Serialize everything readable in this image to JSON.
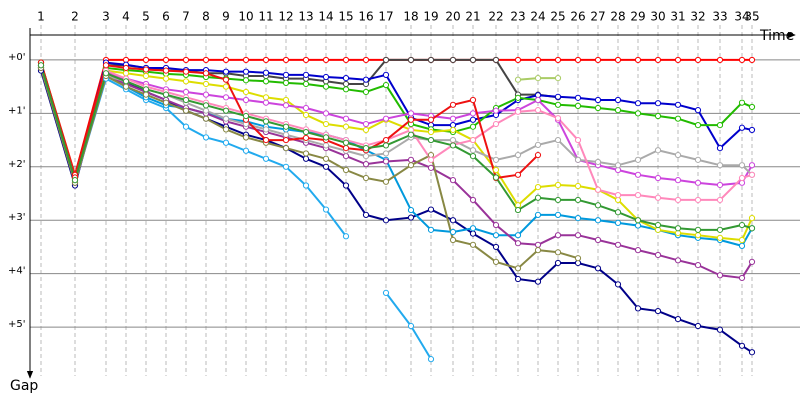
{
  "chart_data": {
    "type": "line",
    "x_label": "Time",
    "y_label": "Gap",
    "x": [
      0.8,
      2.5,
      4.05,
      5.05,
      6.05,
      7.05,
      8.05,
      9.05,
      10.05,
      11.05,
      12.05,
      13.05,
      14.05,
      15.05,
      16.05,
      17.05,
      18.05,
      19.3,
      20.3,
      21.4,
      22.4,
      23.55,
      24.65,
      25.65,
      26.65,
      27.65,
      28.65,
      29.65,
      30.65,
      31.65,
      32.65,
      33.65,
      34.75,
      35.85,
      36.35
    ],
    "xlim": [
      0.25,
      38.75
    ],
    "xticks": [
      {
        "value": 0.8,
        "label": "1"
      },
      {
        "value": 2.5,
        "label": "2"
      },
      {
        "value": 4.05,
        "label": "3"
      },
      {
        "value": 5.05,
        "label": "4"
      },
      {
        "value": 6.05,
        "label": "5"
      },
      {
        "value": 7.05,
        "label": "6"
      },
      {
        "value": 8.05,
        "label": "7"
      },
      {
        "value": 9.05,
        "label": "8"
      },
      {
        "value": 10.05,
        "label": "9"
      },
      {
        "value": 11.05,
        "label": "10"
      },
      {
        "value": 12.05,
        "label": "11"
      },
      {
        "value": 13.05,
        "label": "12"
      },
      {
        "value": 14.05,
        "label": "13"
      },
      {
        "value": 15.05,
        "label": "14"
      },
      {
        "value": 16.05,
        "label": "15"
      },
      {
        "value": 17.05,
        "label": "16"
      },
      {
        "value": 18.05,
        "label": "17"
      },
      {
        "value": 19.3,
        "label": "18"
      },
      {
        "value": 20.3,
        "label": "19"
      },
      {
        "value": 21.4,
        "label": "20"
      },
      {
        "value": 22.4,
        "label": "21"
      },
      {
        "value": 23.55,
        "label": "22"
      },
      {
        "value": 24.65,
        "label": "23"
      },
      {
        "value": 25.65,
        "label": "24"
      },
      {
        "value": 26.65,
        "label": "25"
      },
      {
        "value": 27.65,
        "label": "26"
      },
      {
        "value": 28.65,
        "label": "27"
      },
      {
        "value": 29.65,
        "label": "28"
      },
      {
        "value": 30.65,
        "label": "29"
      },
      {
        "value": 31.65,
        "label": "30"
      },
      {
        "value": 32.65,
        "label": "31"
      },
      {
        "value": 33.65,
        "label": "32"
      },
      {
        "value": 34.75,
        "label": "33"
      },
      {
        "value": 35.85,
        "label": "34"
      },
      {
        "value": 36.35,
        "label": "35"
      }
    ],
    "ylim": [
      -0.56,
      5.99
    ],
    "y_reversed": true,
    "yticks": [
      {
        "value": 0,
        "label": "+0'"
      },
      {
        "value": 1,
        "label": "+1'"
      },
      {
        "value": 2,
        "label": "+2'"
      },
      {
        "value": 3,
        "label": "+3'"
      },
      {
        "value": 4,
        "label": "+4'"
      },
      {
        "value": 5,
        "label": "+5'"
      }
    ],
    "grid": true,
    "series": [
      {
        "color": "#ff0000",
        "values": [
          0.05,
          2.15,
          0,
          0,
          0,
          0,
          0,
          0,
          0,
          0,
          0,
          0,
          0,
          0,
          0,
          0,
          0,
          0,
          0,
          0,
          0,
          0,
          0,
          0,
          0,
          0,
          0,
          0,
          0,
          0,
          0,
          0,
          0,
          0,
          0
        ]
      },
      {
        "color": "#444444",
        "values": [
          0.1,
          2.2,
          0.1,
          0.1,
          0.15,
          0.2,
          0.2,
          0.25,
          0.25,
          0.3,
          0.3,
          0.35,
          0.35,
          0.4,
          0.45,
          0.45,
          0,
          0,
          0,
          0,
          0,
          0,
          0.65,
          0.65,
          0.7,
          null,
          null,
          null,
          null,
          null,
          null,
          null,
          null,
          null,
          null
        ]
      },
      {
        "color": "#0000cc",
        "values": [
          0.1,
          2.3,
          0.05,
          0.09,
          0.15,
          0.15,
          0.19,
          0.19,
          0.22,
          0.22,
          0.24,
          0.28,
          0.28,
          0.32,
          0.34,
          0.37,
          0.28,
          1.08,
          1.22,
          1.22,
          1.12,
          1.03,
          0.75,
          0.66,
          0.69,
          0.71,
          0.75,
          0.75,
          0.81,
          0.81,
          0.84,
          0.94,
          1.65,
          1.27,
          1.31
        ]
      },
      {
        "color": "#22bb00",
        "values": [
          0.05,
          2.2,
          0.15,
          0.19,
          0.22,
          0.26,
          0.28,
          0.32,
          0.35,
          0.38,
          0.4,
          0.43,
          0.45,
          0.5,
          0.55,
          0.6,
          0.47,
          1.2,
          1.3,
          1.35,
          1.25,
          0.9,
          0.71,
          0.75,
          0.84,
          0.86,
          0.9,
          0.94,
          1.0,
          1.05,
          1.1,
          1.22,
          1.22,
          0.8,
          0.88
        ]
      },
      {
        "color": "#000088",
        "values": [
          0.2,
          2.35,
          0.2,
          0.4,
          0.6,
          0.75,
          0.95,
          1.1,
          1.25,
          1.4,
          1.5,
          1.65,
          1.85,
          2.0,
          2.35,
          2.9,
          3.0,
          2.95,
          2.8,
          3.0,
          3.25,
          3.5,
          4.1,
          4.15,
          3.8,
          3.8,
          3.9,
          4.2,
          4.65,
          4.7,
          4.85,
          4.98,
          5.05,
          5.35,
          5.47
        ]
      },
      {
        "color": "#22aaee",
        "values": [
          0.15,
          2.3,
          0.35,
          0.55,
          0.75,
          0.9,
          1.25,
          1.45,
          1.55,
          1.7,
          1.85,
          2.0,
          2.35,
          2.8,
          3.3,
          null,
          4.36,
          4.98,
          5.6,
          null,
          null,
          null,
          null,
          null,
          null,
          null,
          null,
          null,
          null,
          null,
          null,
          null,
          null,
          null,
          null
        ]
      },
      {
        "color": "#0099dd",
        "values": [
          0.1,
          2.25,
          0.3,
          0.5,
          0.7,
          0.85,
          0.9,
          1.0,
          1.1,
          1.15,
          1.25,
          1.3,
          1.35,
          1.4,
          1.5,
          1.69,
          1.87,
          2.81,
          3.18,
          3.22,
          3.15,
          3.28,
          3.28,
          2.9,
          2.9,
          2.96,
          3.0,
          3.05,
          3.1,
          3.18,
          3.28,
          3.33,
          3.37,
          3.48,
          3.15
        ]
      },
      {
        "color": "#dddd00",
        "values": [
          0.1,
          2.2,
          0.2,
          0.25,
          0.3,
          0.35,
          0.4,
          0.45,
          0.5,
          0.6,
          0.7,
          0.75,
          1.03,
          1.2,
          1.25,
          1.31,
          1.12,
          1.31,
          1.35,
          1.31,
          1.5,
          2.06,
          2.72,
          2.38,
          2.34,
          2.36,
          2.43,
          2.62,
          3.0,
          3.18,
          3.24,
          3.28,
          3.33,
          3.37,
          2.96
        ]
      },
      {
        "color": "#cc44dd",
        "values": [
          0.1,
          2.25,
          0.25,
          0.35,
          0.45,
          0.55,
          0.6,
          0.65,
          0.7,
          0.75,
          0.8,
          0.85,
          0.9,
          1.0,
          1.1,
          1.2,
          1.1,
          1.0,
          1.05,
          1.1,
          1.0,
          0.95,
          0.94,
          0.75,
          1.12,
          1.87,
          1.97,
          2.06,
          2.15,
          2.21,
          2.25,
          2.3,
          2.34,
          2.3,
          1.97
        ]
      },
      {
        "color": "#993399",
        "values": [
          0.15,
          2.3,
          0.3,
          0.45,
          0.6,
          0.75,
          0.9,
          1.0,
          1.15,
          1.25,
          1.35,
          1.45,
          1.55,
          1.65,
          1.8,
          1.95,
          1.9,
          1.87,
          2.02,
          2.25,
          2.62,
          3.09,
          3.43,
          3.46,
          3.28,
          3.28,
          3.37,
          3.46,
          3.56,
          3.65,
          3.75,
          3.84,
          4.03,
          4.08,
          3.78
        ]
      },
      {
        "color": "#aaaaaa",
        "values": [
          0.1,
          2.25,
          0.3,
          0.4,
          0.55,
          0.65,
          0.8,
          0.95,
          1.1,
          1.2,
          1.3,
          1.4,
          1.5,
          1.6,
          1.7,
          1.8,
          1.75,
          1.45,
          1.5,
          1.5,
          1.69,
          1.87,
          1.78,
          1.59,
          1.5,
          1.87,
          1.91,
          1.97,
          1.87,
          1.69,
          1.78,
          1.87,
          1.97,
          1.97,
          2.15
        ]
      },
      {
        "color": "#888844",
        "values": [
          0.15,
          2.3,
          0.3,
          0.5,
          0.65,
          0.8,
          0.95,
          1.1,
          1.3,
          1.45,
          1.55,
          1.65,
          1.75,
          1.85,
          2.06,
          2.21,
          2.28,
          1.97,
          1.78,
          3.37,
          3.46,
          3.78,
          3.9,
          3.56,
          3.6,
          3.71,
          null,
          null,
          null,
          null,
          null,
          null,
          null,
          null,
          null
        ]
      },
      {
        "color": "#ff88bb",
        "values": [
          0.1,
          2.2,
          0.2,
          0.35,
          0.5,
          0.6,
          0.7,
          0.8,
          0.9,
          1.0,
          1.1,
          1.2,
          1.3,
          1.4,
          1.5,
          1.6,
          1.5,
          1.31,
          1.87,
          1.59,
          1.5,
          1.2,
          0.97,
          0.94,
          1.09,
          1.5,
          2.43,
          2.53,
          2.53,
          2.58,
          2.62,
          2.62,
          2.62,
          2.21,
          2.15
        ]
      },
      {
        "color": "#ee1111",
        "values": [
          0.05,
          2.2,
          0.1,
          0.15,
          0.18,
          0.2,
          0.22,
          0.25,
          0.37,
          1.12,
          1.5,
          1.5,
          1.46,
          1.5,
          1.65,
          1.69,
          1.5,
          1.12,
          1.12,
          0.84,
          0.75,
          2.21,
          2.15,
          1.78,
          null,
          null,
          null,
          null,
          null,
          null,
          null,
          null,
          null,
          null,
          null
        ]
      },
      {
        "color": "#339933",
        "values": [
          0.1,
          2.25,
          0.25,
          0.4,
          0.55,
          0.65,
          0.75,
          0.85,
          0.95,
          1.05,
          1.15,
          1.25,
          1.35,
          1.45,
          1.55,
          1.65,
          1.6,
          1.4,
          1.5,
          1.6,
          1.8,
          2.2,
          2.81,
          2.58,
          2.62,
          2.62,
          2.72,
          2.85,
          3.0,
          3.09,
          3.15,
          3.18,
          3.18,
          3.09,
          3.15
        ]
      },
      {
        "color": "#aacc66",
        "values": [
          null,
          null,
          null,
          null,
          null,
          null,
          null,
          null,
          null,
          null,
          null,
          null,
          null,
          null,
          null,
          null,
          null,
          null,
          null,
          null,
          null,
          null,
          0.37,
          0.34,
          0.34,
          null,
          null,
          null,
          null,
          null,
          null,
          null,
          null,
          null,
          null
        ]
      }
    ]
  }
}
